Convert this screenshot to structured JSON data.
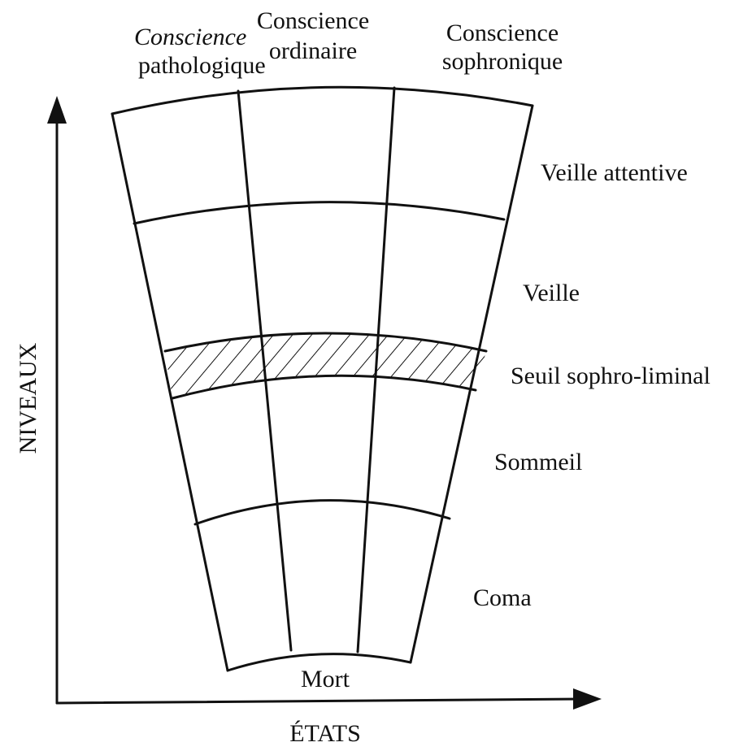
{
  "columns": [
    {
      "lines": [
        "Conscience",
        "pathologique"
      ]
    },
    {
      "lines": [
        "Conscience",
        "ordinaire"
      ]
    },
    {
      "lines": [
        "Conscience",
        "sophronique"
      ]
    }
  ],
  "levels": [
    "Veille attentive",
    "Veille",
    "Seuil sophro-liminal",
    "Sommeil",
    "Coma"
  ],
  "bottom": "Mort",
  "axes": {
    "y": "NIVEAUX",
    "x": "ÉTATS"
  }
}
